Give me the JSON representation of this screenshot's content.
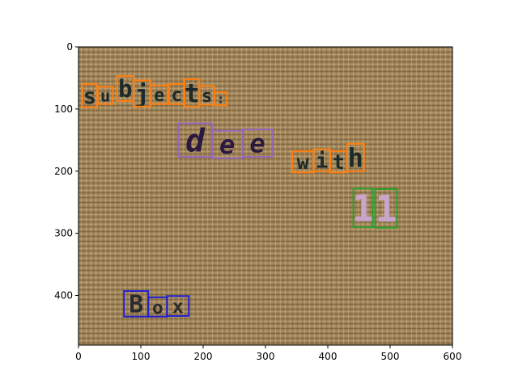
{
  "chart_data": {
    "type": "image",
    "title": "",
    "xlabel": "",
    "ylabel": "",
    "xlim": [
      0,
      600
    ],
    "ylim": [
      480,
      0
    ],
    "x_ticks": [
      0,
      100,
      200,
      300,
      400,
      500,
      600
    ],
    "y_ticks": [
      0,
      100,
      200,
      300,
      400
    ],
    "grid": false,
    "background": "woven burlap fabric texture",
    "colors": {
      "orange": "#ff7f0e",
      "purple": "#9467bd",
      "green": "#2ca02c",
      "blue": "#1f1fd0"
    },
    "word_groups": [
      {
        "color": "orange",
        "boxes": [
          {
            "char": "s",
            "x0": 6,
            "y0": 60,
            "x1": 30,
            "y1": 97
          },
          {
            "char": "u",
            "x0": 31,
            "y0": 64,
            "x1": 55,
            "y1": 92
          },
          {
            "char": "b",
            "x0": 62,
            "y0": 47,
            "x1": 88,
            "y1": 87
          },
          {
            "char": "j",
            "x0": 88,
            "y0": 54,
            "x1": 116,
            "y1": 96
          },
          {
            "char": "e",
            "x0": 116,
            "y0": 62,
            "x1": 143,
            "y1": 92
          },
          {
            "char": "c",
            "x0": 145,
            "y0": 60,
            "x1": 170,
            "y1": 92
          },
          {
            "char": "t",
            "x0": 170,
            "y0": 52,
            "x1": 194,
            "y1": 96
          },
          {
            "char": "s",
            "x0": 194,
            "y0": 63,
            "x1": 218,
            "y1": 93
          },
          {
            "char": ":",
            "x0": 218,
            "y0": 73,
            "x1": 238,
            "y1": 94
          }
        ]
      },
      {
        "color": "purple",
        "boxes": [
          {
            "char": "d",
            "x0": 160,
            "y0": 123,
            "x1": 214,
            "y1": 177
          },
          {
            "char": "e",
            "x0": 214,
            "y0": 135,
            "x1": 263,
            "y1": 179
          },
          {
            "char": "e",
            "x0": 263,
            "y0": 133,
            "x1": 311,
            "y1": 177
          }
        ]
      },
      {
        "color": "orange",
        "boxes": [
          {
            "char": "w",
            "x0": 343,
            "y0": 168,
            "x1": 377,
            "y1": 202
          },
          {
            "char": "i",
            "x0": 377,
            "y0": 165,
            "x1": 404,
            "y1": 200
          },
          {
            "char": "t",
            "x0": 404,
            "y0": 168,
            "x1": 431,
            "y1": 202
          },
          {
            "char": "h",
            "x0": 431,
            "y0": 156,
            "x1": 458,
            "y1": 200
          }
        ]
      },
      {
        "color": "green",
        "boxes": [
          {
            "char": "1",
            "x0": 441,
            "y0": 228,
            "x1": 472,
            "y1": 290
          },
          {
            "char": "1",
            "x0": 476,
            "y0": 229,
            "x1": 511,
            "y1": 291
          }
        ]
      },
      {
        "color": "blue",
        "boxes": [
          {
            "char": "B",
            "x0": 73,
            "y0": 393,
            "x1": 112,
            "y1": 434
          },
          {
            "char": "o",
            "x0": 112,
            "y0": 403,
            "x1": 142,
            "y1": 434
          },
          {
            "char": "x",
            "x0": 142,
            "y0": 401,
            "x1": 177,
            "y1": 433
          }
        ]
      }
    ]
  }
}
